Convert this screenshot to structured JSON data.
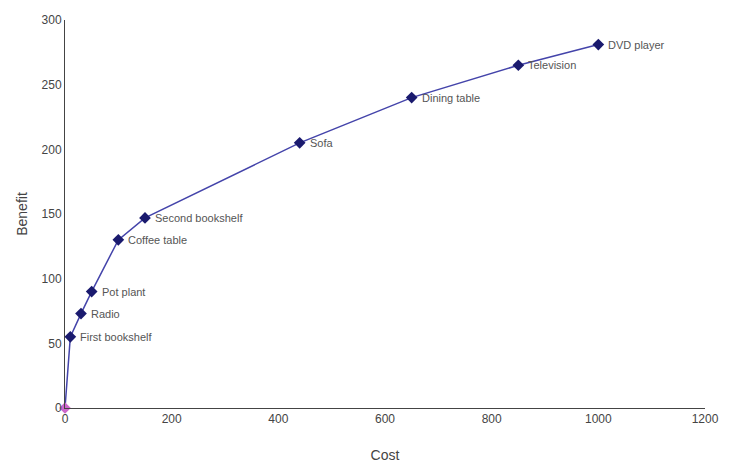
{
  "chart_data": {
    "type": "line",
    "x": [
      0,
      10,
      30,
      50,
      100,
      150,
      440,
      650,
      850,
      1000
    ],
    "series": [
      {
        "color": "#4444aa",
        "marker": "diamond",
        "colors": [
          "#cc66cc",
          "#1a1a6e",
          "#1a1a6e",
          "#1a1a6e",
          "#1a1a6e",
          "#1a1a6e",
          "#1a1a6e",
          "#1a1a6e",
          "#1a1a6e",
          "#1a1a6e"
        ],
        "values": [
          0,
          55,
          73,
          90,
          130,
          147,
          205,
          240,
          265,
          281
        ]
      }
    ],
    "annotations": [
      {
        "x": 10,
        "y": 55,
        "text": "First bookshelf",
        "color": "#555555"
      },
      {
        "x": 30,
        "y": 73,
        "text": "Radio",
        "color": "#555555"
      },
      {
        "x": 50,
        "y": 90,
        "text": "Pot plant",
        "color": "#555555"
      },
      {
        "x": 100,
        "y": 130,
        "text": "Coffee table",
        "color": "#555555"
      },
      {
        "x": 150,
        "y": 147,
        "text": "Second bookshelf",
        "color": "#555555"
      },
      {
        "x": 440,
        "y": 205,
        "text": "Sofa",
        "color": "#555555"
      },
      {
        "x": 650,
        "y": 240,
        "text": "Dining table",
        "color": "#555555"
      },
      {
        "x": 850,
        "y": 265,
        "text": "Television",
        "color": "#555555"
      },
      {
        "x": 1000,
        "y": 281,
        "text": "DVD player",
        "color": "#555555"
      }
    ],
    "xlabel": "Cost",
    "ylabel": "Benefit",
    "xlim": [
      0,
      1200
    ],
    "ylim": [
      0,
      300
    ],
    "xticks": [
      0,
      200,
      400,
      600,
      800,
      1000,
      1200
    ],
    "yticks": [
      0,
      50,
      100,
      150,
      200,
      250,
      300
    ],
    "grid": false
  }
}
